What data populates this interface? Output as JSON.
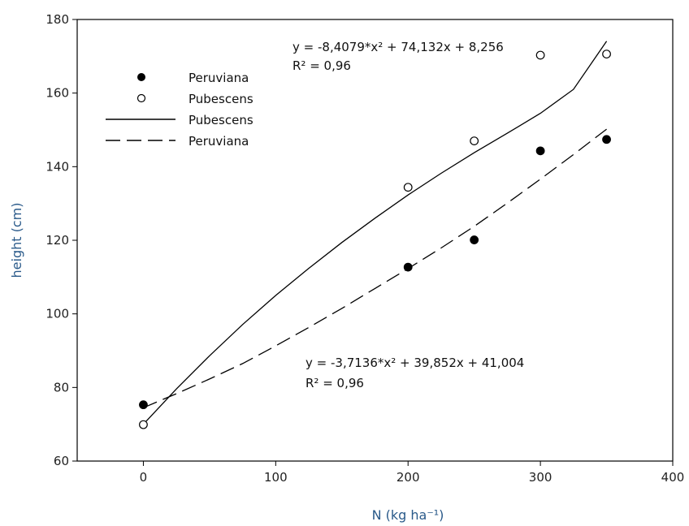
{
  "chart_data": {
    "type": "scatter",
    "xlabel": "N (kg ha⁻¹)",
    "ylabel": "height (cm)",
    "xlim": [
      -50,
      400
    ],
    "ylim": [
      60,
      180
    ],
    "xticks": [
      0,
      100,
      200,
      300,
      400
    ],
    "yticks": [
      60,
      80,
      100,
      120,
      140,
      160,
      180
    ],
    "grid": false,
    "legend_position": "upper-left",
    "series": [
      {
        "name": "Peruviana",
        "kind": "points",
        "marker": "filled-circle",
        "x": [
          0,
          200,
          250,
          300,
          350
        ],
        "y": [
          75.3,
          112.7,
          120.1,
          144.3,
          147.4
        ]
      },
      {
        "name": "Pubescens",
        "kind": "points",
        "marker": "open-circle",
        "x": [
          0,
          200,
          250,
          300,
          350
        ],
        "y": [
          69.9,
          134.4,
          147.0,
          170.3,
          170.6
        ]
      },
      {
        "name": "Pubescens",
        "kind": "fit-line",
        "style": "solid",
        "equation": "y = -8,4079*x² + 74,132x + 8,256",
        "r2": "R² = 0,96",
        "x": [
          0,
          25,
          50,
          75,
          100,
          125,
          150,
          175,
          200,
          225,
          250,
          275,
          300,
          325,
          350
        ],
        "y": [
          70.0,
          79.6,
          88.6,
          97.1,
          105.0,
          112.4,
          119.4,
          126.0,
          132.3,
          138.2,
          143.8,
          149.1,
          154.5,
          161.0,
          174.1
        ]
      },
      {
        "name": "Peruviana",
        "kind": "fit-line",
        "style": "dashed",
        "equation": "y = -3,7136*x² + 39,852x + 41,004",
        "r2": "R² = 0,96",
        "x": [
          0,
          25,
          50,
          75,
          100,
          125,
          150,
          175,
          200,
          225,
          250,
          275,
          300,
          325,
          350
        ],
        "y": [
          74.5,
          78.3,
          82.3,
          86.5,
          91.3,
          96.3,
          101.5,
          106.9,
          112.3,
          117.9,
          123.8,
          130.1,
          136.6,
          143.3,
          150.2
        ]
      }
    ]
  },
  "legend": {
    "items": [
      {
        "label": "Peruviana",
        "symbol": "filled-circle"
      },
      {
        "label": "Pubescens",
        "symbol": "open-circle"
      },
      {
        "label": "Pubescens",
        "symbol": "solid-line"
      },
      {
        "label": "Peruviana",
        "symbol": "dashed-line"
      }
    ]
  },
  "annotations": {
    "top_equation": "y = -8,4079*x² + 74,132x + 8,256",
    "top_r2": "R² = 0,96",
    "bottom_equation": "y = -3,7136*x² + 39,852x + 41,004",
    "bottom_r2": "R² = 0,96"
  }
}
